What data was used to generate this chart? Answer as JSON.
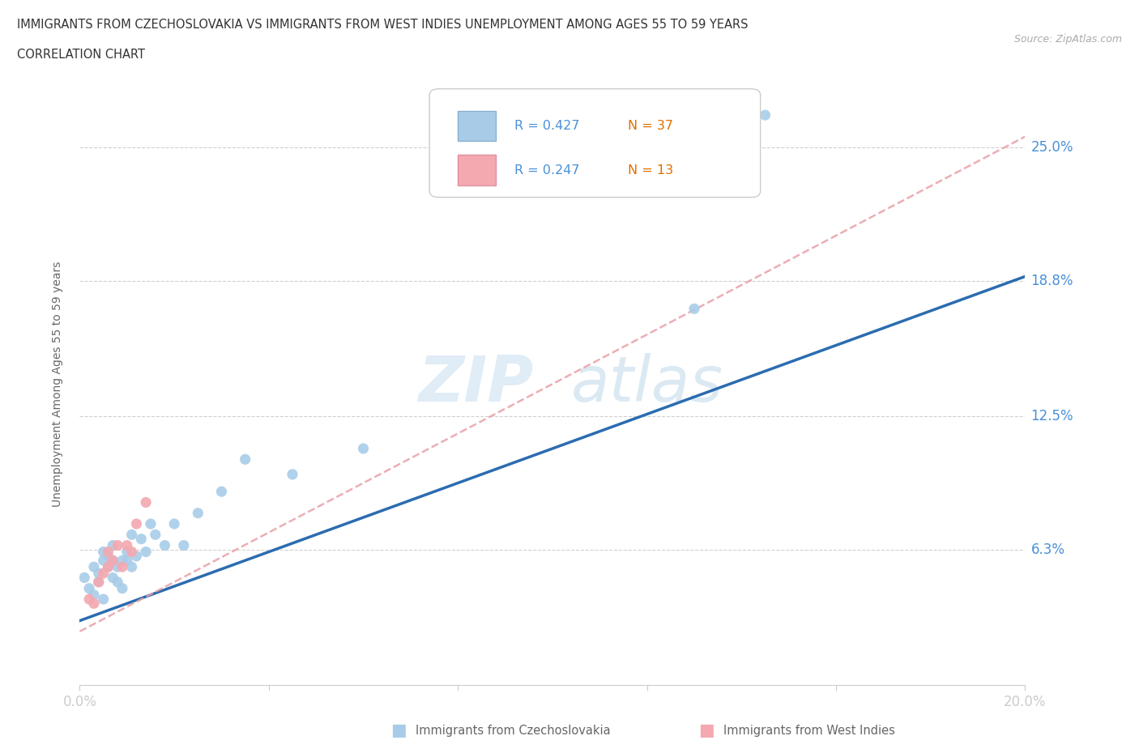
{
  "title_line1": "IMMIGRANTS FROM CZECHOSLOVAKIA VS IMMIGRANTS FROM WEST INDIES UNEMPLOYMENT AMONG AGES 55 TO 59 YEARS",
  "title_line2": "CORRELATION CHART",
  "source": "Source: ZipAtlas.com",
  "ylabel": "Unemployment Among Ages 55 to 59 years",
  "xlim": [
    0.0,
    0.2
  ],
  "ylim": [
    0.0,
    0.28
  ],
  "yticks": [
    0.063,
    0.125,
    0.188,
    0.25
  ],
  "ytick_labels": [
    "6.3%",
    "12.5%",
    "18.8%",
    "25.0%"
  ],
  "xticks": [
    0.0,
    0.04,
    0.08,
    0.12,
    0.16,
    0.2
  ],
  "xtick_labels": [
    "0.0%",
    "",
    "",
    "",
    "",
    "20.0%"
  ],
  "watermark_zip": "ZIP",
  "watermark_atlas": "atlas",
  "legend_R1": "R = 0.427",
  "legend_N1": "N = 37",
  "legend_R2": "R = 0.247",
  "legend_N2": "N = 13",
  "color_czech": "#a8cce8",
  "color_westindies": "#f4a8b0",
  "trendline_czech_color": "#2b6cb0",
  "trendline_westindies_color": "#e8a0a8",
  "background_color": "#ffffff",
  "czech_x": [
    0.001,
    0.002,
    0.003,
    0.003,
    0.004,
    0.004,
    0.005,
    0.005,
    0.005,
    0.006,
    0.006,
    0.007,
    0.007,
    0.007,
    0.008,
    0.008,
    0.009,
    0.009,
    0.01,
    0.01,
    0.011,
    0.011,
    0.012,
    0.013,
    0.014,
    0.015,
    0.016,
    0.018,
    0.02,
    0.022,
    0.025,
    0.03,
    0.035,
    0.045,
    0.06,
    0.13,
    0.145
  ],
  "czech_y": [
    0.05,
    0.045,
    0.055,
    0.042,
    0.048,
    0.052,
    0.04,
    0.058,
    0.062,
    0.055,
    0.06,
    0.05,
    0.058,
    0.065,
    0.048,
    0.055,
    0.058,
    0.045,
    0.058,
    0.062,
    0.055,
    0.07,
    0.06,
    0.068,
    0.062,
    0.075,
    0.07,
    0.065,
    0.075,
    0.065,
    0.08,
    0.09,
    0.105,
    0.098,
    0.11,
    0.175,
    0.265
  ],
  "westindies_x": [
    0.002,
    0.003,
    0.004,
    0.005,
    0.006,
    0.006,
    0.007,
    0.008,
    0.009,
    0.01,
    0.011,
    0.012,
    0.014
  ],
  "westindies_y": [
    0.04,
    0.038,
    0.048,
    0.052,
    0.055,
    0.062,
    0.058,
    0.065,
    0.055,
    0.065,
    0.062,
    0.075,
    0.085
  ],
  "czech_trend_x0": 0.0,
  "czech_trend_y0": 0.03,
  "czech_trend_x1": 0.2,
  "czech_trend_y1": 0.19,
  "wi_trend_x0": 0.0,
  "wi_trend_y0": 0.025,
  "wi_trend_x1": 0.2,
  "wi_trend_y1": 0.255
}
